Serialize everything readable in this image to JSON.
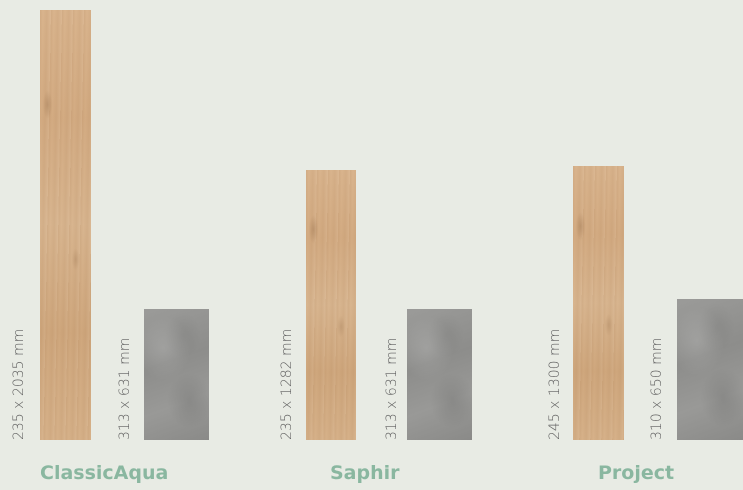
{
  "products": [
    {
      "name": "ClassicAqua",
      "plank_size": "235 x 2035 mm",
      "tile_size": "313 x 631 mm"
    },
    {
      "name": "Saphir",
      "plank_size": "235 x 1282 mm",
      "tile_size": "313 x 631 mm"
    },
    {
      "name": "Project",
      "plank_size": "245 x 1300 mm",
      "tile_size": "310 x 650 mm"
    }
  ],
  "colors": {
    "background": "#e8ebe4",
    "label": "#8ab7a0",
    "dimension_text": "#5f5f5f",
    "wood": "#d6b189",
    "stone": "#939391"
  }
}
